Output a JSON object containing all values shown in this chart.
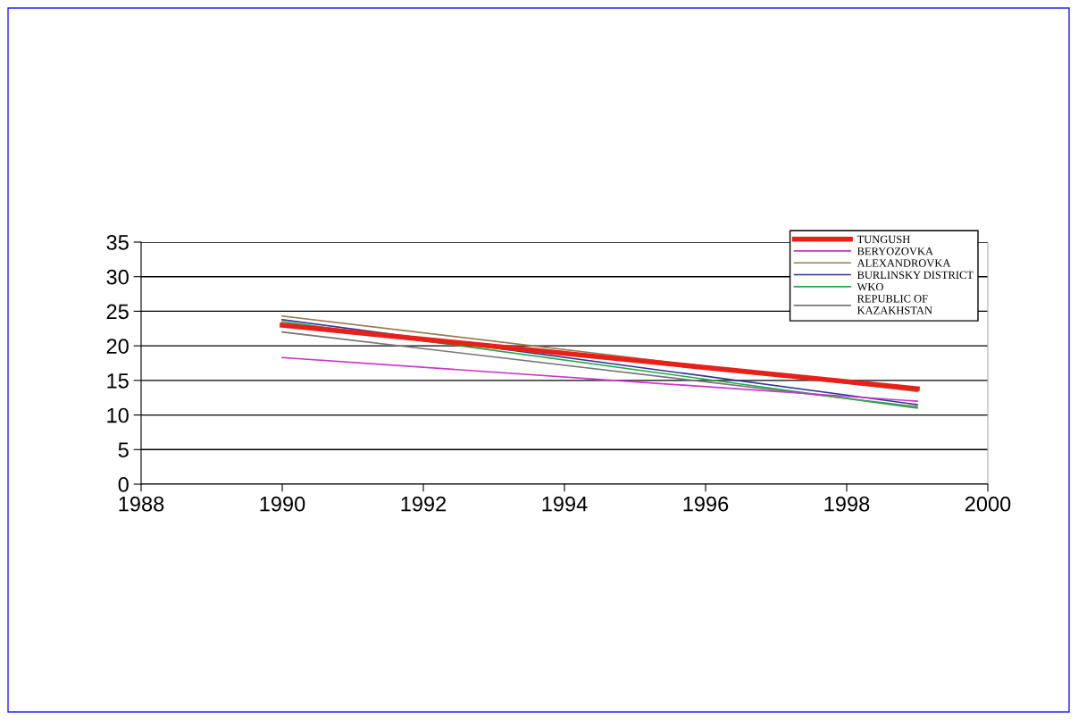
{
  "chart_data": {
    "type": "line",
    "x": [
      1990,
      1999
    ],
    "series": [
      {
        "name": "TUNGUSH",
        "color": "#e8201a",
        "values": [
          23,
          13.8
        ]
      },
      {
        "name": "BERYOZOVKA",
        "color": "#cc33cc",
        "values": [
          18.3,
          12
        ]
      },
      {
        "name": "ALEXANDROVKA",
        "color": "#9a7a50",
        "values": [
          24.3,
          13.4
        ]
      },
      {
        "name": "BURLINSKY DISTRICT",
        "color": "#333399",
        "values": [
          23.8,
          11.5
        ]
      },
      {
        "name": "WKO",
        "color": "#22aa44",
        "values": [
          23.5,
          11
        ]
      },
      {
        "name": "REPUBLIC OF\nKAZAKHSTAN",
        "color": "#777777",
        "values": [
          22,
          11.2
        ]
      }
    ],
    "xlim": [
      1988,
      2000
    ],
    "xticks": [
      1988,
      1990,
      1992,
      1994,
      1996,
      1998,
      2000
    ],
    "ylim": [
      0,
      35
    ],
    "yticks": [
      0,
      5,
      10,
      15,
      20,
      25,
      30,
      35
    ],
    "grid": "y",
    "legend": "top right",
    "marker": "none",
    "line_style": "solid"
  }
}
